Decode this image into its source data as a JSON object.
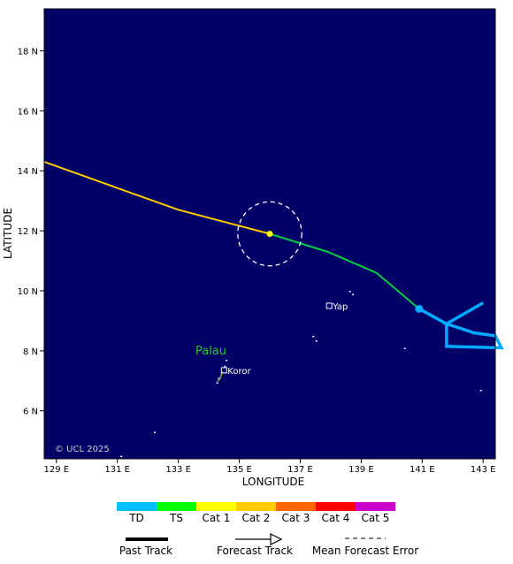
{
  "map": {
    "background": "#000066",
    "land_color": "#ffffff",
    "x_label": "LONGITUDE",
    "y_label": "LATITUDE",
    "lon_range": [
      128.6,
      143.4
    ],
    "lat_range": [
      4.4,
      19.4
    ],
    "lon_ticks": [
      "129 E",
      "131 E",
      "133 E",
      "135 E",
      "137 E",
      "139 E",
      "141 E",
      "143 E"
    ],
    "lon_tick_values": [
      129,
      131,
      133,
      135,
      137,
      139,
      141,
      143
    ],
    "lat_ticks": [
      "6 N",
      "8 N",
      "10 N",
      "12 N",
      "14 N",
      "16 N",
      "18 N"
    ],
    "lat_tick_values": [
      6,
      8,
      10,
      12,
      14,
      16,
      18
    ],
    "copyright": "© UCL 2025",
    "places": [
      {
        "name": "Yap",
        "lon": 137.95,
        "lat": 9.5
      },
      {
        "name": "Koror",
        "lon": 134.5,
        "lat": 7.35
      }
    ],
    "region_label": {
      "text": "Palau",
      "lon": 134.1,
      "lat": 8.0,
      "color": "#22cc22"
    }
  },
  "track": {
    "segments": [
      {
        "category": "TS",
        "color": "#00cc44",
        "points": [
          [
            140.9,
            9.4
          ],
          [
            139.5,
            10.6
          ],
          [
            137.9,
            11.3
          ],
          [
            136.0,
            11.9
          ]
        ]
      },
      {
        "category": "Cat 1",
        "color": "#ffcc00",
        "points": [
          [
            136.0,
            11.9
          ],
          [
            133.0,
            12.7
          ],
          [
            128.6,
            14.3
          ]
        ]
      }
    ],
    "td_path": {
      "color": "#00aaff",
      "points": [
        [
          143.0,
          9.6
        ],
        [
          141.8,
          8.9
        ],
        [
          142.7,
          8.6
        ],
        [
          143.4,
          8.5
        ],
        [
          143.6,
          8.1
        ],
        [
          141.8,
          8.15
        ],
        [
          141.8,
          8.9
        ],
        [
          140.9,
          9.4
        ]
      ]
    },
    "current_position": {
      "lon": 140.9,
      "lat": 9.4,
      "color": "#00aaff"
    },
    "forecast_point": {
      "lon": 136.0,
      "lat": 11.9,
      "color": "#ffff00"
    },
    "error_circle": {
      "lon": 136.0,
      "lat": 11.9,
      "radius_deg": 1.05
    }
  },
  "legend": {
    "categories": [
      {
        "label": "TD",
        "color": "#00bfff"
      },
      {
        "label": "TS",
        "color": "#00ff00"
      },
      {
        "label": "Cat 1",
        "color": "#ffff00"
      },
      {
        "label": "Cat 2",
        "color": "#ffcc00"
      },
      {
        "label": "Cat 3",
        "color": "#ff6600"
      },
      {
        "label": "Cat 4",
        "color": "#ff0000"
      },
      {
        "label": "Cat 5",
        "color": "#cc00cc"
      }
    ],
    "past_track": "Past Track",
    "forecast_track": "Forecast Track",
    "mean_error": "Mean Forecast Error"
  }
}
